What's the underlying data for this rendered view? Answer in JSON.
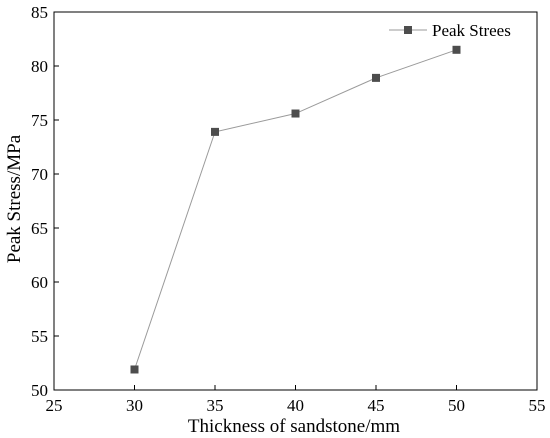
{
  "chart_data": {
    "type": "line",
    "title": "",
    "xlabel": "Thickness of sandstone/mm",
    "ylabel": "Peak Stress/MPa",
    "xlim": [
      25,
      55
    ],
    "ylim": [
      50,
      85
    ],
    "xticks": [
      "25",
      "30",
      "35",
      "40",
      "45",
      "50",
      "55"
    ],
    "yticks": [
      "50",
      "55",
      "60",
      "65",
      "70",
      "75",
      "80",
      "85"
    ],
    "grid": false,
    "legend_position": "top-right",
    "series": [
      {
        "name": "Peak Strees",
        "marker": "square",
        "color": "#4d4d4d",
        "line_color": "#9a9a9a",
        "x": [
          30,
          35,
          40,
          45,
          50
        ],
        "y": [
          51.9,
          73.9,
          75.6,
          78.9,
          81.5
        ]
      }
    ]
  }
}
